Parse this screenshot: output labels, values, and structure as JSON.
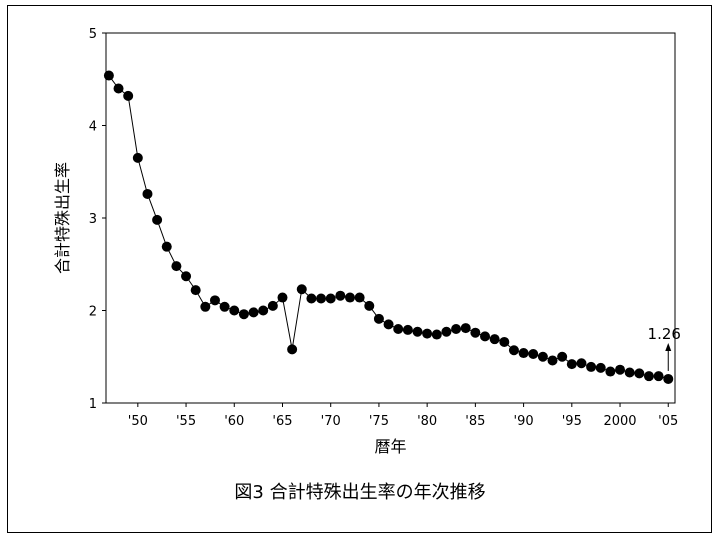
{
  "caption": "図3 合計特殊出生率の年次推移",
  "chart_data": {
    "type": "line",
    "title": "",
    "xlabel": "暦年",
    "ylabel": "合計特殊出生率",
    "ylim": [
      1,
      5
    ],
    "xlim": [
      1947,
      2005
    ],
    "yticks": [
      1,
      2,
      3,
      4,
      5
    ],
    "xticks": [
      {
        "x": 1950,
        "label": "'50"
      },
      {
        "x": 1955,
        "label": "'55"
      },
      {
        "x": 1960,
        "label": "'60"
      },
      {
        "x": 1965,
        "label": "'65"
      },
      {
        "x": 1970,
        "label": "'70"
      },
      {
        "x": 1975,
        "label": "'75"
      },
      {
        "x": 1980,
        "label": "'80"
      },
      {
        "x": 1985,
        "label": "'85"
      },
      {
        "x": 1990,
        "label": "'90"
      },
      {
        "x": 1995,
        "label": "'95"
      },
      {
        "x": 2000,
        "label": "2000"
      },
      {
        "x": 2005,
        "label": "'05"
      }
    ],
    "grid": false,
    "series": [
      {
        "color": "#000000",
        "x": [
          1947,
          1948,
          1949,
          1950,
          1951,
          1952,
          1953,
          1954,
          1955,
          1956,
          1957,
          1958,
          1959,
          1960,
          1961,
          1962,
          1963,
          1964,
          1965,
          1966,
          1967,
          1968,
          1969,
          1970,
          1971,
          1972,
          1973,
          1974,
          1975,
          1976,
          1977,
          1978,
          1979,
          1980,
          1981,
          1982,
          1983,
          1984,
          1985,
          1986,
          1987,
          1988,
          1989,
          1990,
          1991,
          1992,
          1993,
          1994,
          1995,
          1996,
          1997,
          1998,
          1999,
          2000,
          2001,
          2002,
          2003,
          2004,
          2005
        ],
        "y": [
          4.54,
          4.4,
          4.32,
          3.65,
          3.26,
          2.98,
          2.69,
          2.48,
          2.37,
          2.22,
          2.04,
          2.11,
          2.04,
          2.0,
          1.96,
          1.98,
          2.0,
          2.05,
          2.14,
          1.58,
          2.23,
          2.13,
          2.13,
          2.13,
          2.16,
          2.14,
          2.14,
          2.05,
          1.91,
          1.85,
          1.8,
          1.79,
          1.77,
          1.75,
          1.74,
          1.77,
          1.8,
          1.81,
          1.76,
          1.72,
          1.69,
          1.66,
          1.57,
          1.54,
          1.53,
          1.5,
          1.46,
          1.5,
          1.42,
          1.43,
          1.39,
          1.38,
          1.34,
          1.36,
          1.33,
          1.32,
          1.29,
          1.29,
          1.26
        ]
      }
    ],
    "annotations": [
      {
        "x": 2005,
        "y": 1.26,
        "text": "1.26",
        "arrow": true
      }
    ]
  }
}
